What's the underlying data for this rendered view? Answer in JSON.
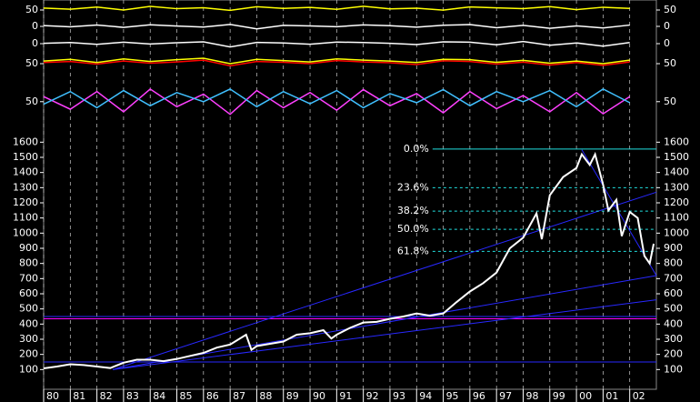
{
  "chart_data": [
    {
      "type": "line",
      "panel": "main",
      "x": [
        1980,
        1980.5,
        1981,
        1981.5,
        1982,
        1982.5,
        1983,
        1983.5,
        1984,
        1984.5,
        1985,
        1985.5,
        1986,
        1986.5,
        1987,
        1987.6,
        1987.8,
        1988,
        1988.5,
        1989,
        1989.5,
        1990,
        1990.5,
        1990.8,
        1991,
        1991.5,
        1992,
        1992.5,
        1993,
        1993.5,
        1994,
        1994.5,
        1995,
        1995.5,
        1996,
        1996.5,
        1997,
        1997.5,
        1998,
        1998.5,
        1998.7,
        1999,
        1999.5,
        2000,
        2000.2,
        2000.5,
        2000.7,
        2001,
        2001.2,
        2001.5,
        2001.7,
        2002,
        2002.3,
        2002.55,
        2002.75,
        2002.9
      ],
      "series": [
        {
          "color": "#ffffff",
          "values": [
            108,
            120,
            135,
            130,
            120,
            110,
            145,
            165,
            165,
            155,
            170,
            190,
            210,
            245,
            265,
            330,
            230,
            255,
            270,
            285,
            330,
            340,
            360,
            305,
            330,
            375,
            410,
            415,
            435,
            450,
            470,
            455,
            470,
            545,
            615,
            670,
            740,
            900,
            970,
            1130,
            960,
            1250,
            1370,
            1430,
            1520,
            1450,
            1520,
            1320,
            1150,
            1220,
            980,
            1140,
            1100,
            850,
            800,
            930
          ]
        }
      ],
      "xlim": [
        1980,
        2003
      ],
      "ylim": [
        -30,
        1650
      ],
      "xticks": [
        {
          "value": 1980,
          "label": "80"
        },
        {
          "value": 1981,
          "label": "81"
        },
        {
          "value": 1982,
          "label": "82"
        },
        {
          "value": 1983,
          "label": "83"
        },
        {
          "value": 1984,
          "label": "84"
        },
        {
          "value": 1985,
          "label": "85"
        },
        {
          "value": 1986,
          "label": "86"
        },
        {
          "value": 1987,
          "label": "87"
        },
        {
          "value": 1988,
          "label": "88"
        },
        {
          "value": 1989,
          "label": "89"
        },
        {
          "value": 1990,
          "label": "90"
        },
        {
          "value": 1991,
          "label": "91"
        },
        {
          "value": 1992,
          "label": "92"
        },
        {
          "value": 1993,
          "label": "93"
        },
        {
          "value": 1994,
          "label": "94"
        },
        {
          "value": 1995,
          "label": "95"
        },
        {
          "value": 1996,
          "label": "96"
        },
        {
          "value": 1997,
          "label": "97"
        },
        {
          "value": 1998,
          "label": "98"
        },
        {
          "value": 1999,
          "label": "99"
        },
        {
          "value": 2000,
          "label": "00"
        },
        {
          "value": 2001,
          "label": "01"
        },
        {
          "value": 2002,
          "label": "02"
        }
      ],
      "yticks": [
        100,
        200,
        300,
        400,
        500,
        600,
        700,
        800,
        900,
        1000,
        1100,
        1200,
        1300,
        1400,
        1500,
        1600
      ],
      "fib_x": [
        1994.6,
        2003
      ],
      "fib_levels": [
        {
          "value": 1555,
          "label": "0.0%"
        },
        {
          "value": 1300,
          "label": "23.6%"
        },
        {
          "value": 1145,
          "label": "38.2%"
        },
        {
          "value": 1025,
          "label": "50.0%"
        },
        {
          "value": 880,
          "label": "61.8%"
        }
      ],
      "fib_color": "#20e0e0",
      "trend_lines": [
        {
          "color": "#ff00ff",
          "x": [
            1980,
            2003
          ],
          "values": [
            435,
            435
          ]
        },
        {
          "color": "#2828ff",
          "x": [
            1980,
            2003
          ],
          "values": [
            450,
            450
          ]
        },
        {
          "color": "#2828ff",
          "x": [
            1980,
            2003
          ],
          "values": [
            150,
            150
          ]
        },
        {
          "color": "#2828ff",
          "x": [
            1982.6,
            2003
          ],
          "values": [
            100,
            1270
          ]
        },
        {
          "color": "#2828ff",
          "x": [
            1982.6,
            2003
          ],
          "values": [
            100,
            720
          ]
        },
        {
          "color": "#2828ff",
          "x": [
            1982.6,
            2003
          ],
          "values": [
            100,
            560
          ]
        },
        {
          "color": "#2828ff",
          "x": [
            2000.2,
            2003
          ],
          "values": [
            1550,
            720
          ]
        }
      ]
    },
    {
      "type": "line",
      "panel": "ind1",
      "xlim": [
        1980,
        2003
      ],
      "ylim": [
        0,
        100
      ],
      "yticks": [
        50
      ],
      "x": [
        1980,
        1981,
        1982,
        1983,
        1984,
        1985,
        1986,
        1987,
        1988,
        1989,
        1990,
        1991,
        1992,
        1993,
        1994,
        1995,
        1996,
        1997,
        1998,
        1999,
        2000,
        2001,
        2002
      ],
      "series": [
        {
          "color": "#ffff00",
          "values": [
            62,
            55,
            68,
            50,
            72,
            58,
            64,
            48,
            70,
            60,
            66,
            54,
            73,
            57,
            61,
            49,
            69,
            63,
            58,
            71,
            52,
            67,
            60
          ]
        }
      ]
    },
    {
      "type": "line",
      "panel": "ind2",
      "xlim": [
        1980,
        2003
      ],
      "ylim": [
        -50,
        50
      ],
      "yticks": [
        0
      ],
      "x": [
        1980,
        1981,
        1982,
        1983,
        1984,
        1985,
        1986,
        1987,
        1988,
        1989,
        1990,
        1991,
        1992,
        1993,
        1994,
        1995,
        1996,
        1997,
        1998,
        1999,
        2000,
        2001,
        2002
      ],
      "series": [
        {
          "color": "#ffffff",
          "values": [
            5,
            -3,
            8,
            -6,
            10,
            2,
            -4,
            12,
            -15,
            6,
            3,
            -2,
            9,
            4,
            -5,
            7,
            11,
            -8,
            6,
            -12,
            3,
            -10,
            8
          ]
        }
      ]
    },
    {
      "type": "line",
      "panel": "ind3",
      "xlim": [
        1980,
        2003
      ],
      "ylim": [
        -50,
        50
      ],
      "yticks": [
        0
      ],
      "x": [
        1980,
        1981,
        1982,
        1983,
        1984,
        1985,
        1986,
        1987,
        1988,
        1989,
        1990,
        1991,
        1992,
        1993,
        1994,
        1995,
        1996,
        1997,
        1998,
        1999,
        2000,
        2001,
        2002
      ],
      "series": [
        {
          "color": "#ffffff",
          "values": [
            2,
            6,
            -4,
            8,
            -2,
            5,
            10,
            -18,
            7,
            4,
            -3,
            9,
            6,
            2,
            -5,
            10,
            8,
            -6,
            12,
            -9,
            4,
            -14,
            6
          ]
        }
      ]
    },
    {
      "type": "line",
      "panel": "ind4",
      "xlim": [
        1980,
        2003
      ],
      "ylim": [
        0,
        100
      ],
      "yticks": [
        50
      ],
      "x": [
        1980,
        1981,
        1982,
        1983,
        1984,
        1985,
        1986,
        1987,
        1988,
        1989,
        1990,
        1991,
        1992,
        1993,
        1994,
        1995,
        1996,
        1997,
        1998,
        1999,
        2000,
        2001,
        2002
      ],
      "series": [
        {
          "color": "#ff0000",
          "values": [
            55,
            60,
            48,
            62,
            52,
            58,
            66,
            40,
            60,
            56,
            50,
            64,
            58,
            54,
            46,
            63,
            60,
            48,
            57,
            44,
            55,
            42,
            58
          ]
        },
        {
          "color": "#ffff00",
          "values": [
            62,
            70,
            55,
            72,
            60,
            68,
            75,
            50,
            70,
            64,
            58,
            72,
            66,
            62,
            55,
            70,
            68,
            56,
            65,
            52,
            62,
            50,
            66
          ]
        }
      ]
    },
    {
      "type": "line",
      "panel": "ind5",
      "xlim": [
        1980,
        2003
      ],
      "ylim": [
        10,
        100
      ],
      "yticks": [
        50
      ],
      "x": [
        1980,
        1981,
        1982,
        1983,
        1984,
        1985,
        1986,
        1987,
        1988,
        1989,
        1990,
        1991,
        1992,
        1993,
        1994,
        1995,
        1996,
        1997,
        1998,
        1999,
        2000,
        2001,
        2002
      ],
      "series": [
        {
          "color": "#ff40ff",
          "values": [
            60,
            35,
            70,
            30,
            75,
            40,
            65,
            25,
            72,
            38,
            68,
            33,
            74,
            42,
            66,
            28,
            70,
            36,
            62,
            30,
            68,
            26,
            60
          ]
        },
        {
          "color": "#40c0ff",
          "values": [
            45,
            70,
            38,
            72,
            42,
            68,
            50,
            75,
            40,
            70,
            46,
            72,
            38,
            66,
            48,
            74,
            42,
            70,
            50,
            72,
            40,
            75,
            48
          ]
        }
      ]
    }
  ]
}
